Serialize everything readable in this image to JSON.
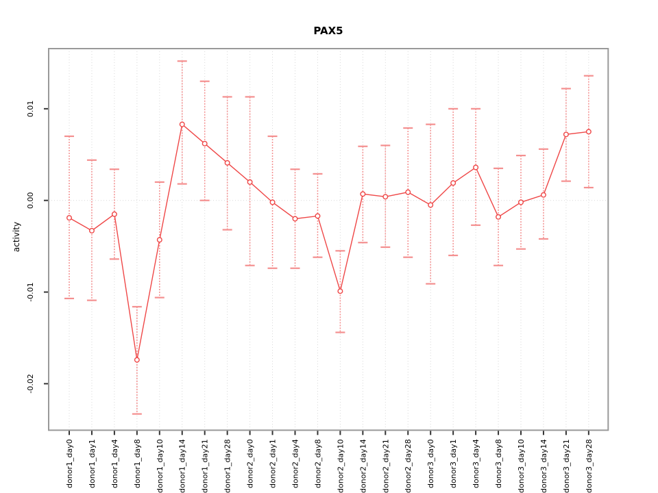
{
  "chart_data": {
    "type": "line",
    "title": "PAX5",
    "xlabel": "",
    "ylabel": "activity",
    "legend": "none",
    "point_style": "open-circle",
    "error_bars": true,
    "categories": [
      "donor1_day0",
      "donor1_day1",
      "donor1_day4",
      "donor1_day8",
      "donor1_day10",
      "donor1_day14",
      "donor1_day21",
      "donor1_day28",
      "donor2_day0",
      "donor2_day1",
      "donor2_day4",
      "donor2_day8",
      "donor2_day10",
      "donor2_day14",
      "donor2_day21",
      "donor2_day28",
      "donor3_day0",
      "donor3_day1",
      "donor3_day4",
      "donor3_day8",
      "donor3_day10",
      "donor3_day14",
      "donor3_day21",
      "donor3_day28"
    ],
    "series": [
      {
        "name": "PAX5 activity",
        "values": [
          -0.0019,
          -0.0033,
          -0.0015,
          -0.0174,
          -0.0043,
          0.0083,
          0.0062,
          0.0041,
          0.002,
          -0.0002,
          -0.002,
          -0.0017,
          -0.0099,
          0.0007,
          0.0004,
          0.0009,
          -0.0005,
          0.0019,
          0.0036,
          -0.0018,
          -0.0002,
          0.0006,
          0.0072,
          0.0075
        ],
        "error_low": [
          -0.0107,
          -0.0109,
          -0.0064,
          -0.0233,
          -0.0106,
          0.0018,
          0.0,
          -0.0032,
          -0.0071,
          -0.0074,
          -0.0074,
          -0.0062,
          -0.0144,
          -0.0046,
          -0.0051,
          -0.0062,
          -0.0091,
          -0.006,
          -0.0027,
          -0.0071,
          -0.0053,
          -0.0042,
          0.0021,
          0.0014
        ],
        "error_high": [
          0.007,
          0.0044,
          0.0034,
          -0.0116,
          0.002,
          0.0152,
          0.013,
          0.0113,
          0.0113,
          0.007,
          0.0034,
          0.0029,
          -0.0055,
          0.0059,
          0.006,
          0.0079,
          0.0083,
          0.01,
          0.01,
          0.0035,
          0.0049,
          0.0056,
          0.0122,
          0.0136
        ]
      }
    ],
    "ylim": [
      -0.0251,
      0.0165
    ],
    "ytick_values": [
      0.01,
      0.0,
      -0.01,
      -0.02
    ],
    "ytick_labels": [
      "0.01",
      "0.00",
      "-0.01",
      "-0.02"
    ],
    "grid": {
      "vertical_gridlines": "dotted at every category",
      "horizontal_zero_line": "dotted at 0.00"
    },
    "colors": {
      "line": "#ef4747",
      "point": "#ef4747",
      "error_bar": "#f48f8f",
      "gridline": "#d7d7d7",
      "plot_border": "#999999",
      "tick": "#333333",
      "text": "#000000",
      "background": "#ffffff"
    }
  }
}
